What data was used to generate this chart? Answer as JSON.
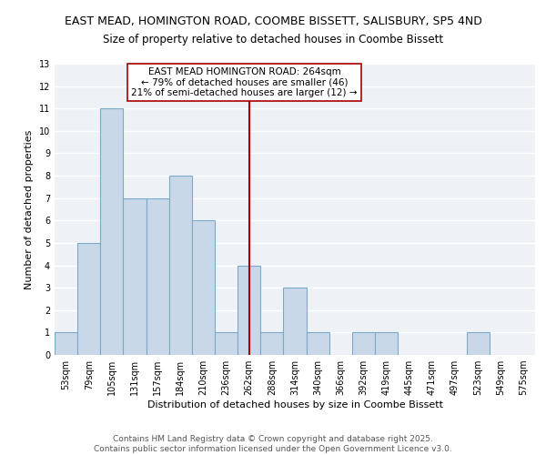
{
  "title_line1": "EAST MEAD, HOMINGTON ROAD, COOMBE BISSETT, SALISBURY, SP5 4ND",
  "title_line2": "Size of property relative to detached houses in Coombe Bissett",
  "xlabel": "Distribution of detached houses by size in Coombe Bissett",
  "ylabel": "Number of detached properties",
  "categories": [
    "53sqm",
    "79sqm",
    "105sqm",
    "131sqm",
    "157sqm",
    "184sqm",
    "210sqm",
    "236sqm",
    "262sqm",
    "288sqm",
    "314sqm",
    "340sqm",
    "366sqm",
    "392sqm",
    "419sqm",
    "445sqm",
    "471sqm",
    "497sqm",
    "523sqm",
    "549sqm",
    "575sqm"
  ],
  "values": [
    1,
    5,
    11,
    7,
    7,
    8,
    6,
    1,
    4,
    1,
    3,
    1,
    0,
    1,
    1,
    0,
    0,
    0,
    1,
    0,
    0
  ],
  "bar_color": "#c8d8e8",
  "bar_edgecolor": "#7aaac8",
  "vline_x": 8,
  "vline_color": "#aa0000",
  "annotation_text": "EAST MEAD HOMINGTON ROAD: 264sqm\n← 79% of detached houses are smaller (46)\n21% of semi-detached houses are larger (12) →",
  "annotation_box_color": "white",
  "annotation_box_edgecolor": "#aa0000",
  "ylim": [
    0,
    13
  ],
  "yticks": [
    0,
    1,
    2,
    3,
    4,
    5,
    6,
    7,
    8,
    9,
    10,
    11,
    12,
    13
  ],
  "bg_color": "#eef2f7",
  "grid_color": "white",
  "footer_line1": "Contains HM Land Registry data © Crown copyright and database right 2025.",
  "footer_line2": "Contains public sector information licensed under the Open Government Licence v3.0.",
  "title_fontsize": 9.0,
  "subtitle_fontsize": 8.5,
  "axis_label_fontsize": 8.0,
  "tick_fontsize": 7.0,
  "annotation_fontsize": 7.5,
  "footer_fontsize": 6.5
}
